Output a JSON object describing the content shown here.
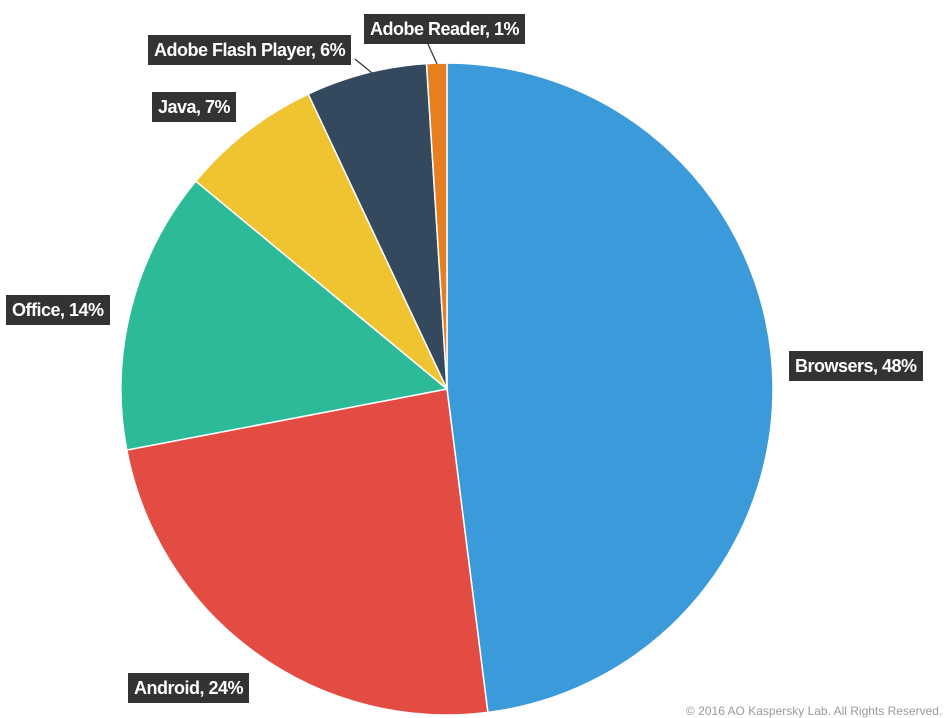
{
  "chart_data": {
    "type": "pie",
    "slices": [
      {
        "label": "Browsers, 48%",
        "name": "Browsers",
        "value": 48,
        "color": "#3b9ad9"
      },
      {
        "label": "Android, 24%",
        "name": "Android",
        "value": 24,
        "color": "#e34c42"
      },
      {
        "label": "Office, 14%",
        "name": "Office",
        "value": 14,
        "color": "#2cba98"
      },
      {
        "label": "Java, 7%",
        "name": "Java",
        "value": 7,
        "color": "#f0c330"
      },
      {
        "label": "Adobe Flash Player, 6%",
        "name": "Adobe Flash Player",
        "value": 6,
        "color": "#34495e"
      },
      {
        "label": "Adobe Reader, 1%",
        "name": "Adobe Reader",
        "value": 1,
        "color": "#e67e22"
      }
    ],
    "start_angle": "12 o'clock",
    "direction": "clockwise"
  },
  "footer": {
    "copyright": "© 2016 AO Kaspersky Lab. All Rights Reserved."
  }
}
